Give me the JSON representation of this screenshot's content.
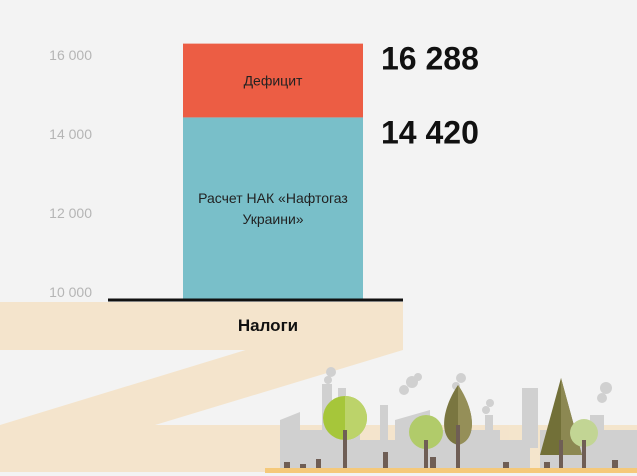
{
  "chart_data": {
    "type": "bar",
    "stacked": true,
    "ylim": [
      10000,
      16288
    ],
    "yticks": [
      10000,
      12000,
      14000,
      16000
    ],
    "ytick_labels": [
      "10 000",
      "12 000",
      "14 000",
      "16 000"
    ],
    "grid": false,
    "base_label": "Налоги",
    "segments": [
      {
        "name": "Расчет НАК «Нафтогаз Украини»",
        "lines": [
          "Расчет НАК «Нафтогаз",
          "Украини»"
        ],
        "from": 10000,
        "to": 14420,
        "total_label": "14 420",
        "color": "#79bfc9"
      },
      {
        "name": "Дефицит",
        "lines": [
          "Дефицит"
        ],
        "from": 14420,
        "to": 16288,
        "total_label": "16 288",
        "color": "#ec5d44"
      }
    ]
  },
  "colors": {
    "background": "#f3f3f3",
    "band": "#f5ddb3",
    "ground": "#f5c97a"
  }
}
